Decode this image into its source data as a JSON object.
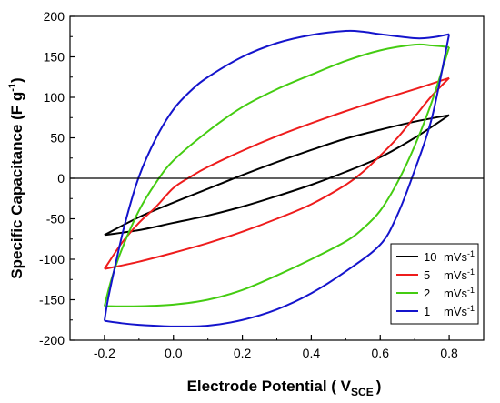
{
  "chart_data": {
    "type": "line",
    "xlabel": {
      "main": "Electrode Potential ( V",
      "sub": "SCE",
      "close": ")"
    },
    "ylabel": {
      "main": "Specific Capacitance (F g",
      "sup": "-1",
      "close": ")"
    },
    "xlim": [
      -0.3,
      0.9
    ],
    "ylim": [
      -200,
      200
    ],
    "xticks": [
      -0.2,
      0.0,
      0.2,
      0.4,
      0.6,
      0.8
    ],
    "xtick_labels": [
      "-0.2",
      "0.0",
      "0.2",
      "0.4",
      "0.6",
      "0.8"
    ],
    "yticks": [
      -200,
      -150,
      -100,
      -50,
      0,
      50,
      100,
      150,
      200
    ],
    "ytick_labels": [
      "-200",
      "-150",
      "-100",
      "-50",
      "0",
      "50",
      "100",
      "150",
      "200"
    ],
    "zero_line": true,
    "grid": false,
    "legend_position": "bottom-right",
    "series": [
      {
        "name": {
          "value": "10",
          "unit": "mVs",
          "sup": "-1"
        },
        "color": "#000000",
        "upper": [
          [
            -0.2,
            -70
          ],
          [
            -0.1,
            -48
          ],
          [
            0.0,
            -30
          ],
          [
            0.1,
            -13
          ],
          [
            0.2,
            4
          ],
          [
            0.3,
            20
          ],
          [
            0.4,
            35
          ],
          [
            0.5,
            49
          ],
          [
            0.6,
            60
          ],
          [
            0.7,
            70
          ],
          [
            0.8,
            78
          ]
        ],
        "lower": [
          [
            -0.2,
            -70
          ],
          [
            -0.1,
            -64
          ],
          [
            0.0,
            -55
          ],
          [
            0.1,
            -46
          ],
          [
            0.2,
            -35
          ],
          [
            0.3,
            -22
          ],
          [
            0.4,
            -8
          ],
          [
            0.5,
            8
          ],
          [
            0.6,
            26
          ],
          [
            0.7,
            50
          ],
          [
            0.8,
            78
          ]
        ]
      },
      {
        "name": {
          "value": "5",
          "unit": "mVs",
          "sup": "-1"
        },
        "color": "#ee1c1c",
        "upper": [
          [
            -0.2,
            -112
          ],
          [
            -0.15,
            -80
          ],
          [
            -0.1,
            -55
          ],
          [
            -0.05,
            -35
          ],
          [
            0.0,
            -12
          ],
          [
            0.05,
            2
          ],
          [
            0.1,
            14
          ],
          [
            0.2,
            34
          ],
          [
            0.3,
            52
          ],
          [
            0.4,
            68
          ],
          [
            0.5,
            83
          ],
          [
            0.6,
            97
          ],
          [
            0.7,
            110
          ],
          [
            0.8,
            124
          ]
        ],
        "lower": [
          [
            -0.2,
            -112
          ],
          [
            -0.1,
            -103
          ],
          [
            0.0,
            -92
          ],
          [
            0.1,
            -80
          ],
          [
            0.2,
            -66
          ],
          [
            0.3,
            -50
          ],
          [
            0.4,
            -32
          ],
          [
            0.5,
            -8
          ],
          [
            0.55,
            8
          ],
          [
            0.6,
            28
          ],
          [
            0.65,
            50
          ],
          [
            0.7,
            76
          ],
          [
            0.75,
            102
          ],
          [
            0.8,
            124
          ]
        ]
      },
      {
        "name": {
          "value": "2",
          "unit": "mVs",
          "sup": "-1"
        },
        "color": "#44cc11",
        "upper": [
          [
            -0.2,
            -158
          ],
          [
            -0.18,
            -125
          ],
          [
            -0.15,
            -88
          ],
          [
            -0.1,
            -40
          ],
          [
            -0.05,
            -5
          ],
          [
            0.0,
            22
          ],
          [
            0.1,
            58
          ],
          [
            0.2,
            88
          ],
          [
            0.3,
            110
          ],
          [
            0.4,
            128
          ],
          [
            0.5,
            145
          ],
          [
            0.6,
            158
          ],
          [
            0.7,
            165
          ],
          [
            0.75,
            164
          ],
          [
            0.8,
            162
          ]
        ],
        "lower": [
          [
            -0.2,
            -158
          ],
          [
            -0.1,
            -158
          ],
          [
            0.0,
            -156
          ],
          [
            0.1,
            -150
          ],
          [
            0.2,
            -138
          ],
          [
            0.3,
            -120
          ],
          [
            0.4,
            -100
          ],
          [
            0.5,
            -78
          ],
          [
            0.55,
            -62
          ],
          [
            0.6,
            -40
          ],
          [
            0.65,
            -5
          ],
          [
            0.7,
            40
          ],
          [
            0.75,
            95
          ],
          [
            0.8,
            162
          ]
        ]
      },
      {
        "name": {
          "value": "1",
          "unit": "mVs",
          "sup": "-1"
        },
        "color": "#1414cc",
        "upper": [
          [
            -0.2,
            -176
          ],
          [
            -0.19,
            -150
          ],
          [
            -0.17,
            -110
          ],
          [
            -0.14,
            -55
          ],
          [
            -0.1,
            2
          ],
          [
            -0.05,
            50
          ],
          [
            0.0,
            85
          ],
          [
            0.05,
            108
          ],
          [
            0.1,
            125
          ],
          [
            0.2,
            150
          ],
          [
            0.3,
            167
          ],
          [
            0.4,
            177
          ],
          [
            0.5,
            182
          ],
          [
            0.55,
            181
          ],
          [
            0.6,
            178
          ],
          [
            0.7,
            173
          ],
          [
            0.75,
            174
          ],
          [
            0.8,
            178
          ]
        ],
        "lower": [
          [
            -0.2,
            -176
          ],
          [
            -0.15,
            -179
          ],
          [
            -0.1,
            -181
          ],
          [
            0.0,
            -183
          ],
          [
            0.1,
            -182
          ],
          [
            0.2,
            -175
          ],
          [
            0.3,
            -162
          ],
          [
            0.4,
            -142
          ],
          [
            0.5,
            -115
          ],
          [
            0.6,
            -82
          ],
          [
            0.65,
            -45
          ],
          [
            0.7,
            10
          ],
          [
            0.75,
            75
          ],
          [
            0.8,
            178
          ]
        ]
      }
    ]
  }
}
